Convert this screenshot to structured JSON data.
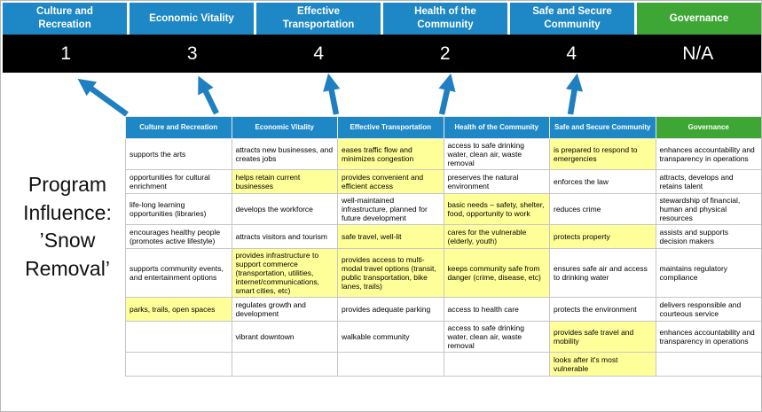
{
  "title": "Program Influence: ’Snow Removal’",
  "colors": {
    "pillar_blue": "#1E87C5",
    "governance_green": "#3EA635",
    "highlight_yellow": "#FFFF99",
    "score_band_black": "#000000",
    "arrow_blue": "#1F7FC0"
  },
  "scoreboard": {
    "columns": [
      {
        "label": "Culture and Recreation",
        "score": "1",
        "type": "blue"
      },
      {
        "label": "Economic Vitality",
        "score": "3",
        "type": "blue"
      },
      {
        "label": "Effective Transportation",
        "score": "4",
        "type": "blue"
      },
      {
        "label": "Health of the Community",
        "score": "2",
        "type": "blue"
      },
      {
        "label": "Safe and Secure Community",
        "score": "4",
        "type": "blue"
      },
      {
        "label": "Governance",
        "score": "N/A",
        "type": "green"
      }
    ]
  },
  "matrix": {
    "headers": [
      {
        "label": "Culture and Recreation",
        "type": "blue"
      },
      {
        "label": "Economic Vitality",
        "type": "blue"
      },
      {
        "label": "Effective Transportation",
        "type": "blue"
      },
      {
        "label": "Health of the Community",
        "type": "blue"
      },
      {
        "label": "Safe and Secure Community",
        "type": "blue"
      },
      {
        "label": "Governance",
        "type": "green"
      }
    ],
    "rows": [
      [
        {
          "text": "supports the arts",
          "highlight": false
        },
        {
          "text": "attracts new businesses, and creates jobs",
          "highlight": false
        },
        {
          "text": "eases traffic flow and minimizes congestion",
          "highlight": true
        },
        {
          "text": "access to safe drinking water, clean air, waste removal",
          "highlight": false
        },
        {
          "text": "is prepared to respond to emergencies",
          "highlight": true
        },
        {
          "text": "enhances accountability and transparency in operations",
          "highlight": false
        }
      ],
      [
        {
          "text": "opportunities for cultural enrichment",
          "highlight": false
        },
        {
          "text": "helps retain current businesses",
          "highlight": true
        },
        {
          "text": "provides convenient and efficient access",
          "highlight": true
        },
        {
          "text": "preserves the natural environment",
          "highlight": false
        },
        {
          "text": "enforces the law",
          "highlight": false
        },
        {
          "text": "attracts, develops and retains talent",
          "highlight": false
        }
      ],
      [
        {
          "text": "life-long learning opportunities (libraries)",
          "highlight": false
        },
        {
          "text": "develops the workforce",
          "highlight": false
        },
        {
          "text": "well-maintained infrastructure, planned for future development",
          "highlight": false
        },
        {
          "text": "basic needs – safety, shelter, food, opportunity to work",
          "highlight": true
        },
        {
          "text": "reduces crime",
          "highlight": false
        },
        {
          "text": "stewardship of financial, human and physical resources",
          "highlight": false
        }
      ],
      [
        {
          "text": "encourages healthy people (promotes active lifestyle)",
          "highlight": false
        },
        {
          "text": "attracts visitors and tourism",
          "highlight": false
        },
        {
          "text": "safe travel, well-lit",
          "highlight": true
        },
        {
          "text": "cares for the vulnerable (elderly, youth)",
          "highlight": true
        },
        {
          "text": "protects property",
          "highlight": true
        },
        {
          "text": "assists and supports decision makers",
          "highlight": false
        }
      ],
      [
        {
          "text": "supports community events, and entertainment options",
          "highlight": false
        },
        {
          "text": "provides infrastructure to support commerce (transportation, utilities, internet/communications, smart cities, etc)",
          "highlight": true
        },
        {
          "text": "provides access to multi-modal travel options (transit, public transportation, bike lanes, trails)",
          "highlight": true
        },
        {
          "text": "keeps community safe from danger (crime, disease, etc)",
          "highlight": true
        },
        {
          "text": "ensures safe air and access to drinking water",
          "highlight": false
        },
        {
          "text": "maintains regulatory compliance",
          "highlight": false
        }
      ],
      [
        {
          "text": "parks, trails, open spaces",
          "highlight": true
        },
        {
          "text": "regulates growth and development",
          "highlight": false
        },
        {
          "text": "provides adequate parking",
          "highlight": false
        },
        {
          "text": "access to health care",
          "highlight": false
        },
        {
          "text": "protects the environment",
          "highlight": false
        },
        {
          "text": "delivers responsible and courteous service",
          "highlight": false
        }
      ],
      [
        {
          "text": "",
          "highlight": false
        },
        {
          "text": "vibrant downtown",
          "highlight": false
        },
        {
          "text": "walkable community",
          "highlight": false
        },
        {
          "text": "access to safe drinking water, clean air, waste removal",
          "highlight": false
        },
        {
          "text": "provides safe travel and mobility",
          "highlight": true
        },
        {
          "text": "enhances accountability and transparency in operations",
          "highlight": false
        }
      ],
      [
        {
          "text": "",
          "highlight": false
        },
        {
          "text": "",
          "highlight": false
        },
        {
          "text": "",
          "highlight": false
        },
        {
          "text": "",
          "highlight": false
        },
        {
          "text": "looks after it's most vulnerable",
          "highlight": true
        },
        {
          "text": "",
          "highlight": false
        }
      ]
    ]
  }
}
